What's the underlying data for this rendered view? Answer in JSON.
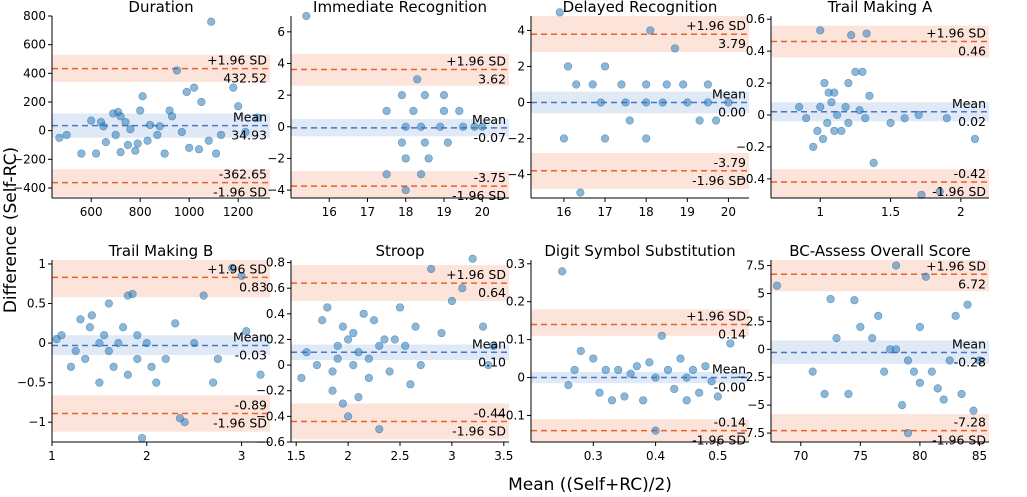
{
  "figure": {
    "ylabel": "Difference (Self-RC)",
    "xlabel": "Mean ((Self+RC)/2)"
  },
  "chart_data": [
    {
      "type": "scatter",
      "title": "Duration",
      "xlim": [
        440,
        1330
      ],
      "ylim": [
        -470,
        800
      ],
      "xticks": [
        600,
        800,
        1000,
        1200
      ],
      "yticks": [
        -400,
        -200,
        0,
        200,
        400,
        600,
        800
      ],
      "mean": 34.93,
      "upper": 432.52,
      "lower": -362.65,
      "upper_band": [
        340,
        530
      ],
      "mean_band": [
        -50,
        120
      ],
      "lower_band": [
        -460,
        -270
      ],
      "upper_labels": [
        "+1.96 SD",
        "432.52"
      ],
      "mean_labels": [
        "Mean",
        "34.93"
      ],
      "lower_labels": [
        "-362.65",
        "-1.96 SD"
      ],
      "points": [
        [
          470,
          -50
        ],
        [
          500,
          -30
        ],
        [
          560,
          -160
        ],
        [
          600,
          70
        ],
        [
          620,
          -160
        ],
        [
          640,
          60
        ],
        [
          650,
          30
        ],
        [
          660,
          -80
        ],
        [
          690,
          120
        ],
        [
          700,
          -30
        ],
        [
          710,
          130
        ],
        [
          720,
          100
        ],
        [
          720,
          -150
        ],
        [
          740,
          60
        ],
        [
          750,
          -100
        ],
        [
          760,
          10
        ],
        [
          780,
          -140
        ],
        [
          790,
          -90
        ],
        [
          800,
          140
        ],
        [
          810,
          240
        ],
        [
          830,
          -70
        ],
        [
          840,
          40
        ],
        [
          870,
          -30
        ],
        [
          880,
          30
        ],
        [
          900,
          -160
        ],
        [
          920,
          140
        ],
        [
          930,
          100
        ],
        [
          950,
          420
        ],
        [
          970,
          -10
        ],
        [
          990,
          270
        ],
        [
          1000,
          -120
        ],
        [
          1020,
          300
        ],
        [
          1040,
          -130
        ],
        [
          1050,
          200
        ],
        [
          1080,
          -70
        ],
        [
          1090,
          760
        ],
        [
          1110,
          -160
        ],
        [
          1130,
          -30
        ],
        [
          1180,
          300
        ],
        [
          1200,
          170
        ],
        [
          1230,
          -10
        ],
        [
          1280,
          90
        ]
      ]
    },
    {
      "type": "scatter",
      "title": "Immediate Recognition",
      "xlim": [
        15,
        20.7
      ],
      "ylim": [
        -4.5,
        7
      ],
      "xticks": [
        16,
        17,
        18,
        19,
        20
      ],
      "yticks": [
        -4,
        -2,
        0,
        2,
        4,
        6
      ],
      "mean": -0.07,
      "upper": 3.62,
      "lower": -3.75,
      "upper_band": [
        2.6,
        4.6
      ],
      "mean_band": [
        -0.6,
        0.5
      ],
      "lower_band": [
        -4.7,
        -2.8
      ],
      "upper_labels": [
        "+1.96 SD",
        "3.62"
      ],
      "mean_labels": [
        "Mean",
        "-0.07"
      ],
      "lower_labels": [
        "-3.75",
        "-1.96 SD"
      ],
      "points": [
        [
          15.4,
          7
        ],
        [
          17.5,
          1
        ],
        [
          17.5,
          -3
        ],
        [
          17.9,
          2
        ],
        [
          17.9,
          -1
        ],
        [
          18,
          0
        ],
        [
          18,
          -4
        ],
        [
          18,
          -2
        ],
        [
          18.2,
          1
        ],
        [
          18.3,
          3
        ],
        [
          18.4,
          0
        ],
        [
          18.4,
          -3
        ],
        [
          18.5,
          2
        ],
        [
          18.5,
          -1
        ],
        [
          18.6,
          -2
        ],
        [
          18.9,
          0
        ],
        [
          19,
          2
        ],
        [
          19,
          1
        ],
        [
          19.1,
          -1
        ],
        [
          19.4,
          1
        ],
        [
          19.5,
          0
        ],
        [
          19.8,
          0
        ],
        [
          20,
          0
        ]
      ]
    },
    {
      "type": "scatter",
      "title": "Delayed Recognition",
      "xlim": [
        15.2,
        20.5
      ],
      "ylim": [
        -5.3,
        4.8
      ],
      "xticks": [
        16,
        17,
        18,
        19,
        20
      ],
      "yticks": [
        -4,
        -2,
        0,
        2,
        4
      ],
      "mean": 0.0,
      "upper": 3.79,
      "lower": -3.79,
      "upper_band": [
        2.8,
        4.8
      ],
      "mean_band": [
        -0.6,
        0.6
      ],
      "lower_band": [
        -4.8,
        -2.8
      ],
      "upper_labels": [
        "+1.96 SD",
        "3.79"
      ],
      "mean_labels": [
        "Mean",
        "0.00"
      ],
      "lower_labels": [
        "-3.79",
        "-1.96 SD"
      ],
      "points": [
        [
          15.9,
          5
        ],
        [
          16.1,
          2
        ],
        [
          16.3,
          1
        ],
        [
          16,
          -2
        ],
        [
          16.4,
          -5
        ],
        [
          16.7,
          1
        ],
        [
          16.9,
          0
        ],
        [
          17,
          2
        ],
        [
          17,
          -2
        ],
        [
          17.4,
          1
        ],
        [
          17.5,
          0
        ],
        [
          17.6,
          -1
        ],
        [
          18,
          1
        ],
        [
          18,
          0
        ],
        [
          18,
          -2
        ],
        [
          18.1,
          4
        ],
        [
          18.4,
          0
        ],
        [
          18.5,
          1
        ],
        [
          18.7,
          3
        ],
        [
          18.9,
          1
        ],
        [
          19,
          0
        ],
        [
          19.3,
          -1
        ],
        [
          19.5,
          1
        ],
        [
          19.5,
          0
        ],
        [
          19.7,
          -1
        ],
        [
          20,
          0
        ]
      ]
    },
    {
      "type": "scatter",
      "title": "Trail Making A",
      "xlim": [
        0.65,
        2.2
      ],
      "ylim": [
        -0.52,
        0.62
      ],
      "xticks": [
        1.0,
        1.5,
        2.0
      ],
      "yticks": [
        -0.4,
        -0.2,
        0.0,
        0.2,
        0.4,
        0.6
      ],
      "mean": 0.02,
      "upper": 0.46,
      "lower": -0.42,
      "upper_band": [
        0.36,
        0.56
      ],
      "mean_band": [
        -0.04,
        0.08
      ],
      "lower_band": [
        -0.54,
        -0.34
      ],
      "upper_labels": [
        "+1.96 SD",
        "0.46"
      ],
      "mean_labels": [
        "Mean",
        "0.02"
      ],
      "lower_labels": [
        "-0.42",
        "-1.96 SD"
      ],
      "points": [
        [
          0.85,
          0.05
        ],
        [
          0.9,
          -0.02
        ],
        [
          0.95,
          -0.2
        ],
        [
          0.98,
          -0.1
        ],
        [
          1.0,
          0.53
        ],
        [
          1.0,
          0.05
        ],
        [
          1.02,
          -0.15
        ],
        [
          1.03,
          0.2
        ],
        [
          1.05,
          -0.05
        ],
        [
          1.06,
          0.14
        ],
        [
          1.08,
          0.08
        ],
        [
          1.1,
          0.14
        ],
        [
          1.1,
          -0.1
        ],
        [
          1.12,
          0.0
        ],
        [
          1.15,
          -0.1
        ],
        [
          1.18,
          0.05
        ],
        [
          1.2,
          0.2
        ],
        [
          1.2,
          -0.05
        ],
        [
          1.22,
          0.5
        ],
        [
          1.25,
          0.27
        ],
        [
          1.28,
          0.03
        ],
        [
          1.3,
          0.27
        ],
        [
          1.32,
          -0.02
        ],
        [
          1.33,
          0.51
        ],
        [
          1.35,
          0.12
        ],
        [
          1.38,
          -0.3
        ],
        [
          1.5,
          -0.05
        ],
        [
          1.6,
          -0.02
        ],
        [
          1.7,
          0.0
        ],
        [
          1.72,
          -0.5
        ],
        [
          1.85,
          -0.48
        ],
        [
          1.9,
          -0.02
        ],
        [
          2.1,
          -0.15
        ]
      ]
    },
    {
      "type": "scatter",
      "title": "Trail Making B",
      "xlim": [
        1.0,
        3.3
      ],
      "ylim": [
        -1.25,
        1.05
      ],
      "xticks": [
        1,
        2,
        3
      ],
      "yticks": [
        -1.0,
        -0.5,
        0.0,
        0.5,
        1.0
      ],
      "mean": -0.03,
      "upper": 0.83,
      "lower": -0.89,
      "upper_band": [
        0.58,
        1.06
      ],
      "mean_band": [
        -0.15,
        0.1
      ],
      "lower_band": [
        -1.12,
        -0.66
      ],
      "upper_labels": [
        "+1.96 SD",
        "0.83"
      ],
      "mean_labels": [
        "Mean",
        "-0.03"
      ],
      "lower_labels": [
        "-0.89",
        "-1.96 SD"
      ],
      "points": [
        [
          1.05,
          0.05
        ],
        [
          1.1,
          0.1
        ],
        [
          1.2,
          -0.3
        ],
        [
          1.25,
          -0.1
        ],
        [
          1.3,
          0.3
        ],
        [
          1.35,
          -0.2
        ],
        [
          1.4,
          0.2
        ],
        [
          1.42,
          0.35
        ],
        [
          1.5,
          0.0
        ],
        [
          1.5,
          -0.5
        ],
        [
          1.55,
          0.1
        ],
        [
          1.6,
          0.5
        ],
        [
          1.6,
          -0.1
        ],
        [
          1.65,
          -0.3
        ],
        [
          1.7,
          0.0
        ],
        [
          1.75,
          0.2
        ],
        [
          1.8,
          0.6
        ],
        [
          1.8,
          -0.4
        ],
        [
          1.85,
          0.62
        ],
        [
          1.9,
          0.1
        ],
        [
          1.9,
          -0.2
        ],
        [
          1.95,
          -1.2
        ],
        [
          2.0,
          0.0
        ],
        [
          2.05,
          -0.3
        ],
        [
          2.1,
          -0.5
        ],
        [
          2.2,
          -0.2
        ],
        [
          2.3,
          0.25
        ],
        [
          2.35,
          -0.95
        ],
        [
          2.4,
          -1.0
        ],
        [
          2.5,
          0.0
        ],
        [
          2.6,
          0.6
        ],
        [
          2.7,
          -0.5
        ],
        [
          2.75,
          -0.2
        ],
        [
          2.9,
          0.95
        ],
        [
          3.0,
          0.85
        ],
        [
          3.05,
          0.15
        ],
        [
          3.2,
          -0.4
        ]
      ]
    },
    {
      "type": "scatter",
      "title": "Stroop",
      "xlim": [
        1.45,
        3.55
      ],
      "ylim": [
        -0.6,
        0.82
      ],
      "xticks": [
        1.5,
        2.0,
        2.5,
        3.0,
        3.5
      ],
      "yticks": [
        -0.6,
        -0.4,
        -0.2,
        0.0,
        0.2,
        0.4,
        0.6,
        0.8
      ],
      "mean": 0.1,
      "upper": 0.64,
      "lower": -0.44,
      "upper_band": [
        0.5,
        0.78
      ],
      "mean_band": [
        0.04,
        0.16
      ],
      "lower_band": [
        -0.58,
        -0.3
      ],
      "upper_labels": [
        "+1.96 SD",
        "0.64"
      ],
      "mean_labels": [
        "Mean",
        "0.10"
      ],
      "lower_labels": [
        "-0.44",
        "-1.96 SD"
      ],
      "points": [
        [
          1.55,
          -0.1
        ],
        [
          1.6,
          0.1
        ],
        [
          1.7,
          0.0
        ],
        [
          1.75,
          0.35
        ],
        [
          1.8,
          0.45
        ],
        [
          1.85,
          -0.05
        ],
        [
          1.85,
          -0.2
        ],
        [
          1.9,
          0.15
        ],
        [
          1.9,
          0.05
        ],
        [
          1.95,
          0.3
        ],
        [
          1.95,
          -0.3
        ],
        [
          2.0,
          0.2
        ],
        [
          2.0,
          -0.4
        ],
        [
          2.05,
          0.25
        ],
        [
          2.05,
          0.0
        ],
        [
          2.1,
          0.1
        ],
        [
          2.1,
          -0.25
        ],
        [
          2.15,
          0.4
        ],
        [
          2.2,
          0.05
        ],
        [
          2.2,
          -0.1
        ],
        [
          2.25,
          0.35
        ],
        [
          2.3,
          0.15
        ],
        [
          2.3,
          -0.5
        ],
        [
          2.35,
          0.2
        ],
        [
          2.4,
          -0.05
        ],
        [
          2.45,
          0.2
        ],
        [
          2.5,
          0.45
        ],
        [
          2.55,
          0.15
        ],
        [
          2.6,
          -0.15
        ],
        [
          2.65,
          0.3
        ],
        [
          2.7,
          0.0
        ],
        [
          2.8,
          0.75
        ],
        [
          2.9,
          0.25
        ],
        [
          3.0,
          0.5
        ],
        [
          3.1,
          0.6
        ],
        [
          3.2,
          0.83
        ],
        [
          3.3,
          0.3
        ],
        [
          3.35,
          0.0
        ],
        [
          3.4,
          0.15
        ]
      ]
    },
    {
      "type": "scatter",
      "title": "Digit Symbol Substitution",
      "xlim": [
        0.2,
        0.55
      ],
      "ylim": [
        -0.17,
        0.31
      ],
      "xticks": [
        0.3,
        0.4,
        0.5
      ],
      "yticks": [
        -0.1,
        0.0,
        0.1,
        0.2,
        0.3
      ],
      "mean": -0.0,
      "upper": 0.14,
      "lower": -0.14,
      "upper_band": [
        0.11,
        0.18
      ],
      "mean_band": [
        -0.015,
        0.015
      ],
      "lower_band": [
        -0.18,
        -0.11
      ],
      "upper_labels": [
        "+1.96 SD",
        "0.14"
      ],
      "mean_labels": [
        "Mean",
        "-0.00"
      ],
      "lower_labels": [
        "-0.14",
        "-1.96 SD"
      ],
      "points": [
        [
          0.25,
          0.28
        ],
        [
          0.26,
          -0.02
        ],
        [
          0.27,
          0.02
        ],
        [
          0.28,
          0.07
        ],
        [
          0.3,
          0.05
        ],
        [
          0.31,
          -0.04
        ],
        [
          0.32,
          0.02
        ],
        [
          0.33,
          -0.06
        ],
        [
          0.34,
          0.02
        ],
        [
          0.35,
          -0.05
        ],
        [
          0.36,
          0.01
        ],
        [
          0.37,
          0.03
        ],
        [
          0.38,
          -0.06
        ],
        [
          0.39,
          0.04
        ],
        [
          0.4,
          -0.14
        ],
        [
          0.4,
          0.0
        ],
        [
          0.41,
          0.11
        ],
        [
          0.42,
          0.02
        ],
        [
          0.43,
          -0.03
        ],
        [
          0.44,
          0.05
        ],
        [
          0.45,
          0.0
        ],
        [
          0.45,
          -0.06
        ],
        [
          0.46,
          0.02
        ],
        [
          0.47,
          -0.04
        ],
        [
          0.48,
          0.03
        ],
        [
          0.49,
          -0.01
        ],
        [
          0.5,
          -0.05
        ],
        [
          0.52,
          0.09
        ]
      ]
    },
    {
      "type": "scatter",
      "title": "BC-Assess Overall Score",
      "xlim": [
        67.5,
        85.8
      ],
      "ylim": [
        -8.3,
        8.0
      ],
      "xticks": [
        70,
        75,
        80,
        85
      ],
      "yticks": [
        -7.5,
        -5.0,
        -2.5,
        0.0,
        2.5,
        5.0,
        7.5
      ],
      "mean": -0.28,
      "upper": 6.72,
      "lower": -7.28,
      "upper_band": [
        5.2,
        8.2
      ],
      "mean_band": [
        -1.3,
        0.8
      ],
      "lower_band": [
        -8.8,
        -5.8
      ],
      "upper_labels": [
        "+1.96 SD",
        "6.72"
      ],
      "mean_labels": [
        "Mean",
        "-0.28"
      ],
      "lower_labels": [
        "-7.28",
        "-1.96 SD"
      ],
      "points": [
        [
          68,
          5.7
        ],
        [
          71,
          -2
        ],
        [
          72,
          -4
        ],
        [
          72.5,
          4.5
        ],
        [
          73,
          1
        ],
        [
          74,
          -4
        ],
        [
          74.5,
          4.4
        ],
        [
          75,
          2
        ],
        [
          76,
          1
        ],
        [
          76.5,
          3
        ],
        [
          77,
          -2
        ],
        [
          77.5,
          0
        ],
        [
          78,
          7.5
        ],
        [
          78,
          0
        ],
        [
          78.5,
          -5
        ],
        [
          79,
          -1
        ],
        [
          79,
          -7.5
        ],
        [
          79.5,
          -2
        ],
        [
          80,
          2
        ],
        [
          80,
          -3
        ],
        [
          80.5,
          6.5
        ],
        [
          81,
          -2
        ],
        [
          81.5,
          -3.5
        ],
        [
          82,
          -4.5
        ],
        [
          82.5,
          -1
        ],
        [
          83,
          3
        ],
        [
          83.5,
          -4
        ],
        [
          84,
          4
        ],
        [
          84.5,
          -5.5
        ],
        [
          85,
          -1
        ]
      ]
    }
  ]
}
